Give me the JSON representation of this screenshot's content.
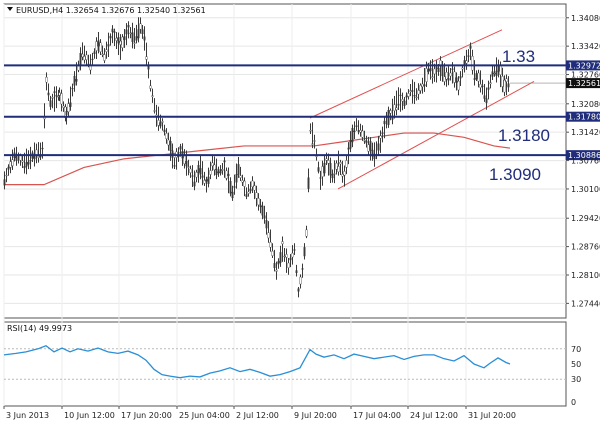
{
  "window": {
    "symbol_header": "EURUSD,H4  1.32654 1.32676 1.32540 1.32561",
    "rsi_header": "RSI(14) 49.9973"
  },
  "chart_data": [
    {
      "type": "candlestick",
      "symbol": "EURUSD",
      "timeframe": "H4",
      "ohlc_header": {
        "open": 1.32654,
        "high": 1.32676,
        "low": 1.3254,
        "close": 1.32561
      },
      "ylim": [
        1.271,
        1.344
      ],
      "y_ticks": [
        "1.34080",
        "1.33420",
        "1.32760",
        "1.32080",
        "1.31420",
        "1.30760",
        "1.30100",
        "1.29420",
        "1.28760",
        "1.28100",
        "1.27440"
      ],
      "x_ticks": [
        "3 Jun 2013",
        "10 Jun 12:00",
        "17 Jun 20:00",
        "25 Jun 04:00",
        "2 Jul 12:00",
        "9 Jul 20:00",
        "17 Jul 04:00",
        "24 Jul 12:00",
        "31 Jul 20:00"
      ],
      "price_path": [
        [
          0,
          1.303
        ],
        [
          10,
          1.309
        ],
        [
          20,
          1.307
        ],
        [
          30,
          1.309
        ],
        [
          38,
          1.31
        ],
        [
          42,
          1.326
        ],
        [
          46,
          1.321
        ],
        [
          55,
          1.323
        ],
        [
          62,
          1.318
        ],
        [
          70,
          1.326
        ],
        [
          78,
          1.333
        ],
        [
          86,
          1.33
        ],
        [
          94,
          1.335
        ],
        [
          100,
          1.332
        ],
        [
          108,
          1.337
        ],
        [
          116,
          1.334
        ],
        [
          124,
          1.338
        ],
        [
          130,
          1.336
        ],
        [
          136,
          1.339
        ],
        [
          140,
          1.336
        ],
        [
          146,
          1.325
        ],
        [
          152,
          1.318
        ],
        [
          158,
          1.316
        ],
        [
          164,
          1.312
        ],
        [
          170,
          1.307
        ],
        [
          176,
          1.31
        ],
        [
          182,
          1.307
        ],
        [
          190,
          1.303
        ],
        [
          196,
          1.306
        ],
        [
          202,
          1.302
        ],
        [
          208,
          1.307
        ],
        [
          214,
          1.305
        ],
        [
          220,
          1.306
        ],
        [
          228,
          1.3
        ],
        [
          234,
          1.306
        ],
        [
          242,
          1.3
        ],
        [
          248,
          1.302
        ],
        [
          254,
          1.298
        ],
        [
          260,
          1.295
        ],
        [
          266,
          1.289
        ],
        [
          272,
          1.282
        ],
        [
          278,
          1.287
        ],
        [
          284,
          1.283
        ],
        [
          290,
          1.287
        ],
        [
          294,
          1.277
        ],
        [
          298,
          1.282
        ],
        [
          302,
          1.291
        ],
        [
          306,
          1.315
        ],
        [
          310,
          1.312
        ],
        [
          316,
          1.303
        ],
        [
          322,
          1.308
        ],
        [
          328,
          1.304
        ],
        [
          334,
          1.307
        ],
        [
          340,
          1.304
        ],
        [
          346,
          1.312
        ],
        [
          352,
          1.316
        ],
        [
          358,
          1.314
        ],
        [
          364,
          1.311
        ],
        [
          370,
          1.309
        ],
        [
          376,
          1.312
        ],
        [
          382,
          1.317
        ],
        [
          388,
          1.319
        ],
        [
          394,
          1.322
        ],
        [
          400,
          1.321
        ],
        [
          406,
          1.324
        ],
        [
          412,
          1.323
        ],
        [
          418,
          1.325
        ],
        [
          424,
          1.329
        ],
        [
          430,
          1.328
        ],
        [
          436,
          1.329
        ],
        [
          442,
          1.327
        ],
        [
          448,
          1.328
        ],
        [
          454,
          1.325
        ],
        [
          460,
          1.33
        ],
        [
          466,
          1.333
        ],
        [
          470,
          1.328
        ],
        [
          476,
          1.326
        ],
        [
          482,
          1.322
        ],
        [
          488,
          1.328
        ],
        [
          494,
          1.329
        ],
        [
          500,
          1.325
        ],
        [
          506,
          1.3256
        ]
      ],
      "ma_path": [
        [
          0,
          1.302
        ],
        [
          40,
          1.302
        ],
        [
          80,
          1.306
        ],
        [
          120,
          1.308
        ],
        [
          160,
          1.309
        ],
        [
          200,
          1.31
        ],
        [
          240,
          1.311
        ],
        [
          280,
          1.311
        ],
        [
          310,
          1.311
        ],
        [
          340,
          1.312
        ],
        [
          370,
          1.313
        ],
        [
          400,
          1.314
        ],
        [
          430,
          1.314
        ],
        [
          460,
          1.313
        ],
        [
          490,
          1.311
        ],
        [
          506,
          1.3105
        ]
      ],
      "channel": {
        "upper": [
          [
            306,
            1.3175
          ],
          [
            498,
            1.338
          ]
        ],
        "lower": [
          [
            334,
            1.301
          ],
          [
            530,
            1.326
          ]
        ]
      },
      "hlines": [
        {
          "price": 1.32972,
          "label": "1.32972",
          "note": "1.33"
        },
        {
          "price": 1.3178,
          "label": "1.31780",
          "note": "1.3180"
        },
        {
          "price": 1.30886,
          "label": "1.30886",
          "note": "1.3090"
        }
      ],
      "current_price_label": "1.32561",
      "current_price": 1.32561
    },
    {
      "type": "line",
      "name": "RSI(14)",
      "value": 49.9973,
      "ylim": [
        0,
        100
      ],
      "y_ticks": [
        "70",
        "50",
        "30",
        "0"
      ],
      "levels": [
        70,
        30
      ],
      "rsi_path": [
        [
          0,
          62
        ],
        [
          12,
          64
        ],
        [
          22,
          66
        ],
        [
          34,
          70
        ],
        [
          42,
          74
        ],
        [
          50,
          66
        ],
        [
          58,
          71
        ],
        [
          66,
          66
        ],
        [
          74,
          70
        ],
        [
          84,
          67
        ],
        [
          94,
          71
        ],
        [
          104,
          66
        ],
        [
          114,
          64
        ],
        [
          124,
          67
        ],
        [
          134,
          62
        ],
        [
          142,
          55
        ],
        [
          150,
          43
        ],
        [
          158,
          36
        ],
        [
          166,
          34
        ],
        [
          176,
          32
        ],
        [
          186,
          34
        ],
        [
          196,
          33
        ],
        [
          206,
          38
        ],
        [
          216,
          41
        ],
        [
          226,
          45
        ],
        [
          236,
          40
        ],
        [
          246,
          43
        ],
        [
          256,
          39
        ],
        [
          266,
          34
        ],
        [
          276,
          36
        ],
        [
          286,
          40
        ],
        [
          296,
          45
        ],
        [
          306,
          69
        ],
        [
          312,
          63
        ],
        [
          320,
          59
        ],
        [
          330,
          62
        ],
        [
          340,
          57
        ],
        [
          350,
          63
        ],
        [
          360,
          60
        ],
        [
          370,
          57
        ],
        [
          380,
          59
        ],
        [
          390,
          61
        ],
        [
          400,
          56
        ],
        [
          410,
          60
        ],
        [
          420,
          62
        ],
        [
          430,
          62
        ],
        [
          440,
          57
        ],
        [
          450,
          54
        ],
        [
          460,
          61
        ],
        [
          470,
          50
        ],
        [
          480,
          45
        ],
        [
          486,
          51
        ],
        [
          494,
          58
        ],
        [
          502,
          52
        ],
        [
          506,
          50
        ]
      ]
    }
  ]
}
